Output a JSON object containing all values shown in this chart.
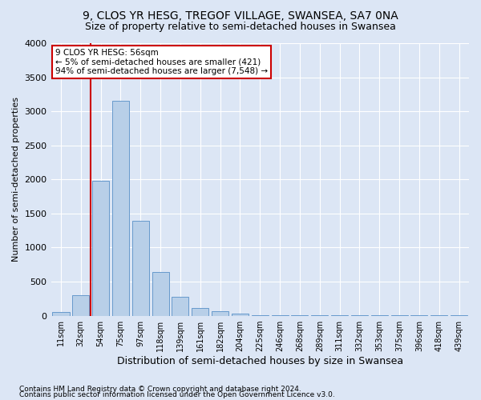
{
  "title1": "9, CLOS YR HESG, TREGOF VILLAGE, SWANSEA, SA7 0NA",
  "title2": "Size of property relative to semi-detached houses in Swansea",
  "xlabel": "Distribution of semi-detached houses by size in Swansea",
  "ylabel": "Number of semi-detached properties",
  "categories": [
    "11sqm",
    "32sqm",
    "54sqm",
    "75sqm",
    "97sqm",
    "118sqm",
    "139sqm",
    "161sqm",
    "182sqm",
    "204sqm",
    "225sqm",
    "246sqm",
    "268sqm",
    "289sqm",
    "311sqm",
    "332sqm",
    "353sqm",
    "375sqm",
    "396sqm",
    "418sqm",
    "439sqm"
  ],
  "values": [
    50,
    300,
    1980,
    3150,
    1390,
    640,
    280,
    110,
    60,
    30,
    10,
    5,
    5,
    5,
    5,
    5,
    5,
    5,
    5,
    5,
    5
  ],
  "bar_color": "#b8cfe8",
  "bar_edge_color": "#6699cc",
  "vline_position": 1.5,
  "annotation_title": "9 CLOS YR HESG: 56sqm",
  "annotation_line1": "← 5% of semi-detached houses are smaller (421)",
  "annotation_line2": "94% of semi-detached houses are larger (7,548) →",
  "ylim": [
    0,
    4000
  ],
  "yticks": [
    0,
    500,
    1000,
    1500,
    2000,
    2500,
    3000,
    3500,
    4000
  ],
  "footnote1": "Contains HM Land Registry data © Crown copyright and database right 2024.",
  "footnote2": "Contains public sector information licensed under the Open Government Licence v3.0.",
  "bg_color": "#dce6f5",
  "plot_bg_color": "#dce6f5",
  "grid_color": "#ffffff",
  "title_fontsize": 10,
  "subtitle_fontsize": 9,
  "annotation_box_color": "#cc0000"
}
